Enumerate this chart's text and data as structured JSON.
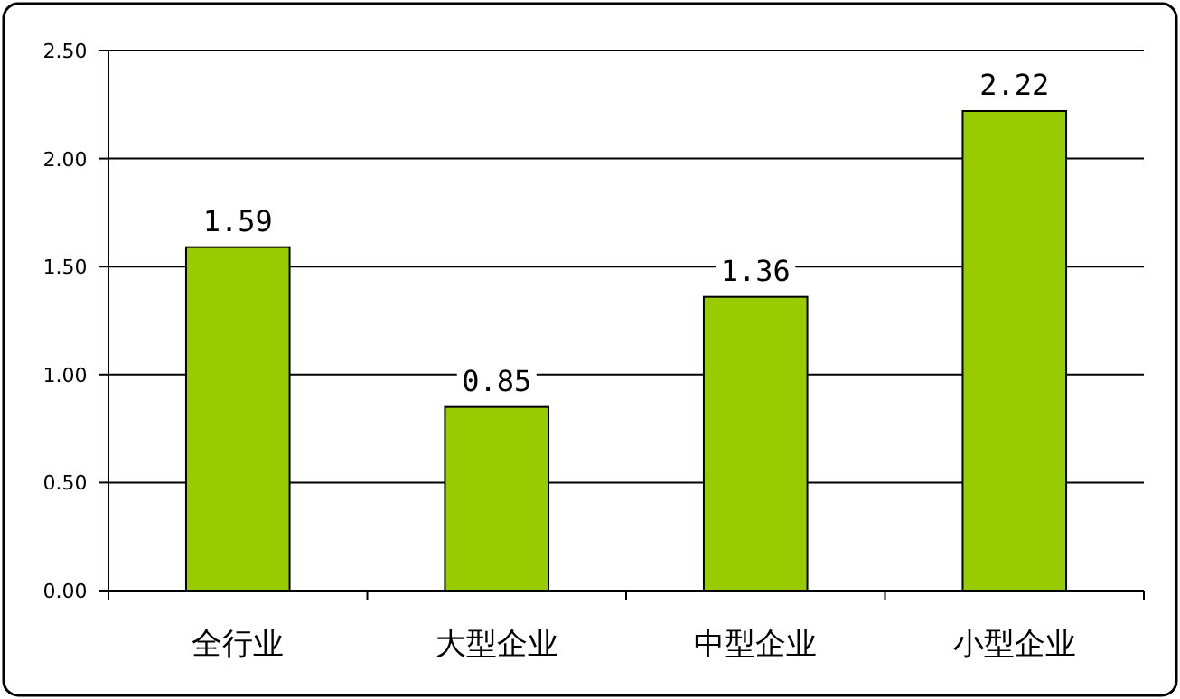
{
  "chart_data": {
    "type": "bar",
    "categories": [
      "全行业",
      "大型企业",
      "中型企业",
      "小型企业"
    ],
    "values": [
      1.59,
      0.85,
      1.36,
      2.22
    ],
    "color": "#99cc00",
    "ylim": [
      0,
      2.5
    ],
    "yticks": [
      {
        "value": 0,
        "label": "0.00"
      },
      {
        "value": 0.5,
        "label": "0.50"
      },
      {
        "value": 1,
        "label": "1.00"
      },
      {
        "value": 1.5,
        "label": "1.50"
      },
      {
        "value": 2,
        "label": "2.00"
      },
      {
        "value": 2.5,
        "label": "2.50"
      }
    ],
    "grid": "y",
    "data_labels": true
  }
}
